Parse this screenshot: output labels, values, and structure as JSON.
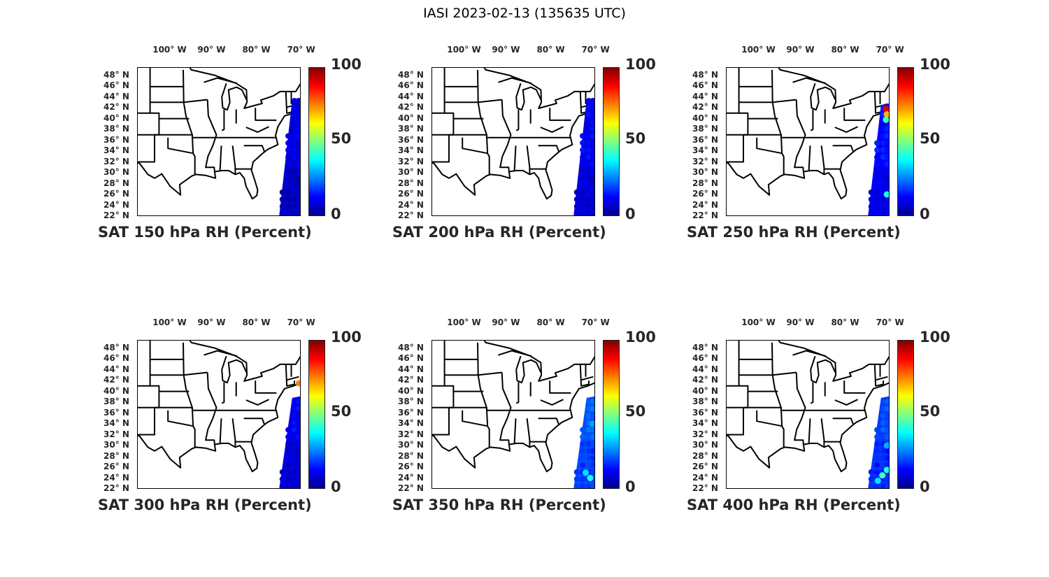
{
  "title": "IASI 2023-02-13 (135635 UTC)",
  "lon_labels": [
    "100° W",
    "90° W",
    "80° W",
    "70° W"
  ],
  "lon_values": [
    -100,
    -90,
    -80,
    -70
  ],
  "lat_labels": [
    "48° N",
    "46° N",
    "44° N",
    "42° N",
    "40° N",
    "38° N",
    "36° N",
    "34° N",
    "32° N",
    "30° N",
    "28° N",
    "26° N",
    "24° N",
    "22° N"
  ],
  "lat_values": [
    48,
    46,
    44,
    42,
    40,
    38,
    36,
    34,
    32,
    30,
    28,
    26,
    24,
    22
  ],
  "colorbar": {
    "ticks": [
      "100",
      "50",
      "0"
    ],
    "range": [
      0,
      100
    ],
    "colormap": "jet"
  },
  "panels": [
    {
      "title": "SAT 150 hPa RH (Percent)",
      "swath_lat_top": 43.5,
      "rh_typical": 8,
      "highlights": []
    },
    {
      "title": "SAT 200 hPa RH (Percent)",
      "swath_lat_top": 43.5,
      "rh_typical": 10,
      "highlights": []
    },
    {
      "title": "SAT 250 hPa RH (Percent)",
      "swath_lat_top": 42.5,
      "rh_typical": 12,
      "highlights": [
        {
          "lat": 41.8,
          "lon": -71.2,
          "rh": 90
        },
        {
          "lat": 40.8,
          "lon": -71,
          "rh": 70
        },
        {
          "lat": 39.8,
          "lon": -71.2,
          "rh": 45
        },
        {
          "lat": 26,
          "lon": -71,
          "rh": 40
        }
      ]
    },
    {
      "title": "SAT 300 hPa RH (Percent)",
      "swath_lat_top": 38.8,
      "rh_typical": 10,
      "highlights": [
        {
          "lat": 41.5,
          "lon": -70.8,
          "rh": 75
        }
      ]
    },
    {
      "title": "SAT 350 hPa RH (Percent)",
      "swath_lat_top": 38.8,
      "rh_typical": 20,
      "highlights": [
        {
          "lat": 25,
          "lon": -72.5,
          "rh": 35
        },
        {
          "lat": 24,
          "lon": -71.5,
          "rh": 40
        },
        {
          "lat": 34,
          "lon": -71,
          "rh": 28
        }
      ]
    },
    {
      "title": "SAT 400 hPa RH (Percent)",
      "swath_lat_top": 38.8,
      "rh_typical": 18,
      "highlights": [
        {
          "lat": 24.5,
          "lon": -72,
          "rh": 45
        },
        {
          "lat": 25.5,
          "lon": -71,
          "rh": 40
        },
        {
          "lat": 23.5,
          "lon": -73,
          "rh": 35
        },
        {
          "lat": 30,
          "lon": -71,
          "rh": 30
        }
      ]
    }
  ]
}
